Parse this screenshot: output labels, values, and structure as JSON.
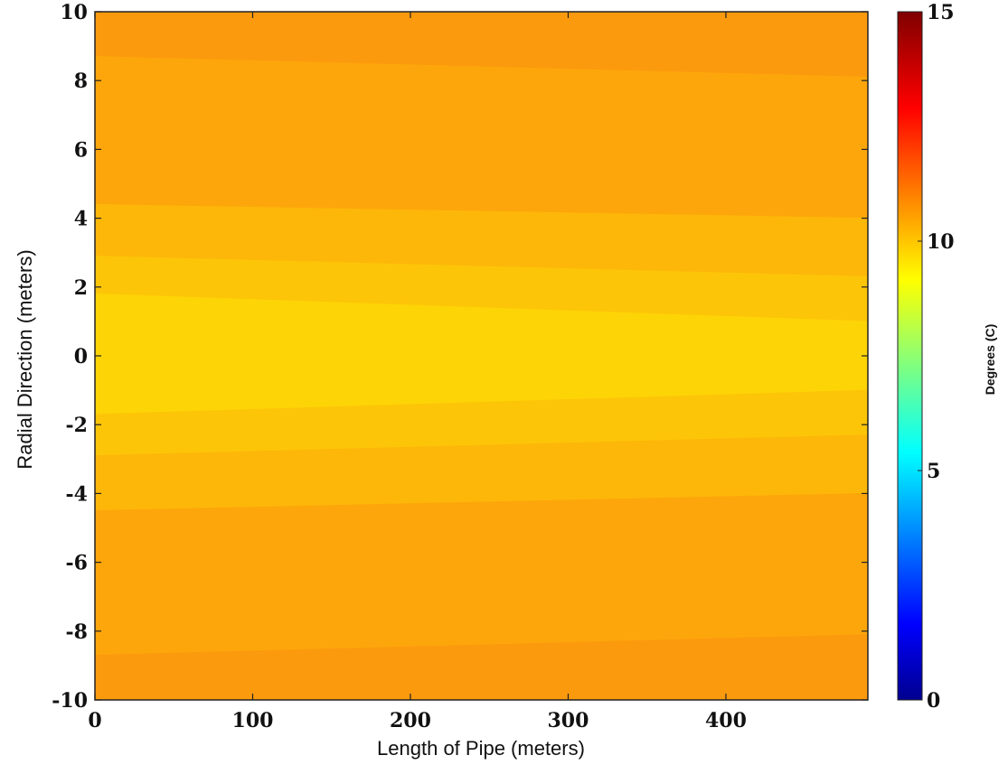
{
  "chart_data": {
    "type": "heatmap",
    "title": "",
    "xlabel": "Length of Pipe (meters)",
    "ylabel": "Radial Direction (meters)",
    "xlim": [
      0,
      490
    ],
    "ylim": [
      -10,
      10
    ],
    "x_ticks": [
      0,
      100,
      200,
      300,
      400
    ],
    "x_tick_labels": [
      "0",
      "100",
      "200",
      "300",
      "400"
    ],
    "y_ticks": [
      10,
      8,
      6,
      4,
      2,
      0,
      -2,
      -4,
      -6,
      -8,
      -10
    ],
    "y_tick_labels": [
      "10",
      "8",
      "6",
      "4",
      "2",
      "0",
      "-2",
      "-4",
      "-6",
      "-8",
      "-10"
    ],
    "colormap": "jet",
    "colorbar": {
      "label": "Degrees (C)",
      "range": [
        0,
        15
      ],
      "ticks": [
        15,
        10,
        5,
        0
      ],
      "tick_labels": [
        "15",
        "10",
        "5",
        "0"
      ]
    },
    "contour_bands": [
      {
        "y_start": [
          10,
          10
        ],
        "y_end": [
          8.7,
          8.1
        ],
        "value": 10.9,
        "color": "#fc9a0e"
      },
      {
        "y_start": [
          8.7,
          8.1
        ],
        "y_end": [
          4.4,
          4.0
        ],
        "value": 10.7,
        "color": "#fda60b"
      },
      {
        "y_start": [
          4.4,
          4.0
        ],
        "y_end": [
          2.9,
          2.3
        ],
        "value": 10.4,
        "color": "#fdb709"
      },
      {
        "y_start": [
          2.9,
          2.3
        ],
        "y_end": [
          1.8,
          1.0
        ],
        "value": 10.2,
        "color": "#fdc508"
      },
      {
        "y_start": [
          1.8,
          1.0
        ],
        "y_end": [
          -1.7,
          -1.0
        ],
        "value": 10.0,
        "color": "#fdd406"
      },
      {
        "y_start": [
          -1.7,
          -1.0
        ],
        "y_end": [
          -2.9,
          -2.3
        ],
        "value": 10.2,
        "color": "#fdc508"
      },
      {
        "y_start": [
          -2.9,
          -2.3
        ],
        "y_end": [
          -4.5,
          -4.0
        ],
        "value": 10.4,
        "color": "#fdb709"
      },
      {
        "y_start": [
          -4.5,
          -4.0
        ],
        "y_end": [
          -8.7,
          -8.1
        ],
        "value": 10.7,
        "color": "#fda60b"
      },
      {
        "y_start": [
          -8.7,
          -8.1
        ],
        "y_end": [
          -10,
          -10
        ],
        "value": 10.9,
        "color": "#fc9a0e"
      }
    ],
    "grid": false
  }
}
